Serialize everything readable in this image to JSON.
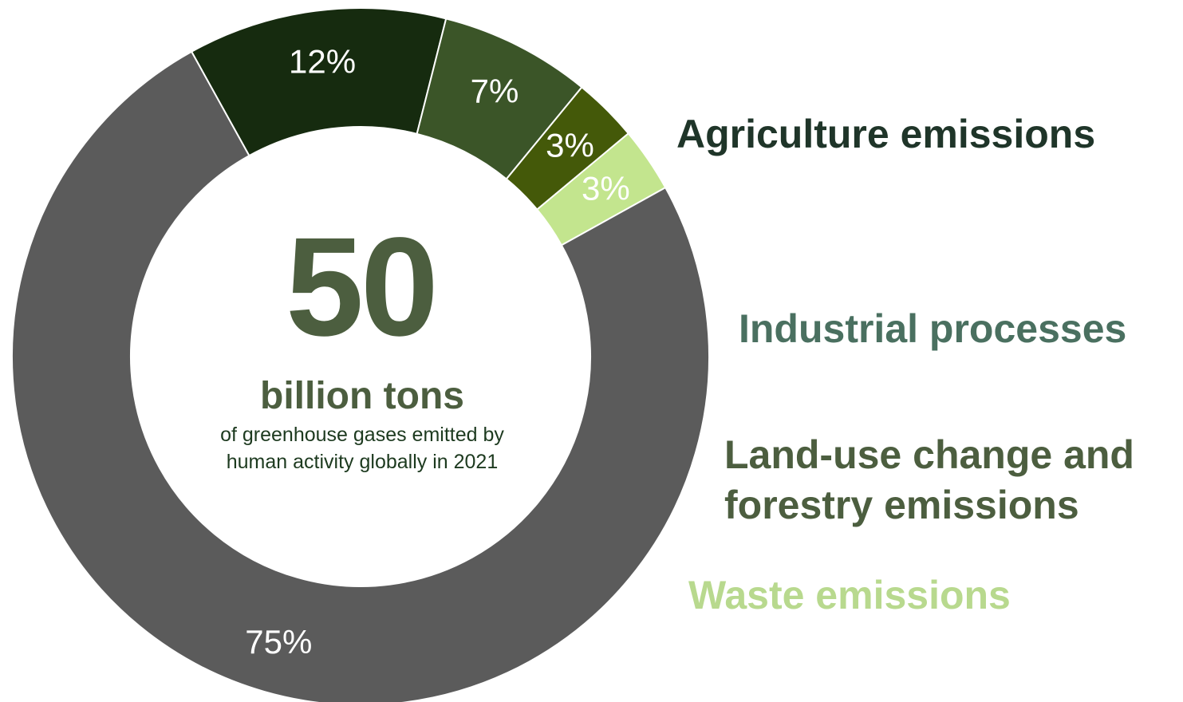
{
  "chart_data": {
    "type": "pie",
    "variant": "donut",
    "slices": [
      {
        "name": "Agriculture emissions",
        "value": 12,
        "label": "12%",
        "color": "#162b0f"
      },
      {
        "name": "Industrial processes",
        "value": 7,
        "label": "7%",
        "color": "#3b5528"
      },
      {
        "name": "Land-use change and forestry emissions",
        "value": 3,
        "label": "3%",
        "color": "#445909"
      },
      {
        "name": "Waste emissions",
        "value": 3,
        "label": "3%",
        "color": "#c3e58e"
      },
      {
        "name": "",
        "value": 75,
        "label": "75%",
        "color": "#5b5b5b"
      }
    ],
    "legend": [
      {
        "lines": [
          "Agriculture emissions"
        ],
        "color": "#1f3529"
      },
      {
        "lines": [
          "Industrial processes"
        ],
        "color": "#4a7060"
      },
      {
        "lines": [
          "Land-use change and",
          "forestry emissions"
        ],
        "color": "#4c5e3f"
      },
      {
        "lines": [
          "Waste emissions"
        ],
        "color": "#b8d98e"
      }
    ],
    "legend_placement": "right",
    "center": {
      "number": "50",
      "unit": "billion tons",
      "description": [
        "of greenhouse gases emitted by",
        "human activity globally in 2021"
      ]
    }
  }
}
